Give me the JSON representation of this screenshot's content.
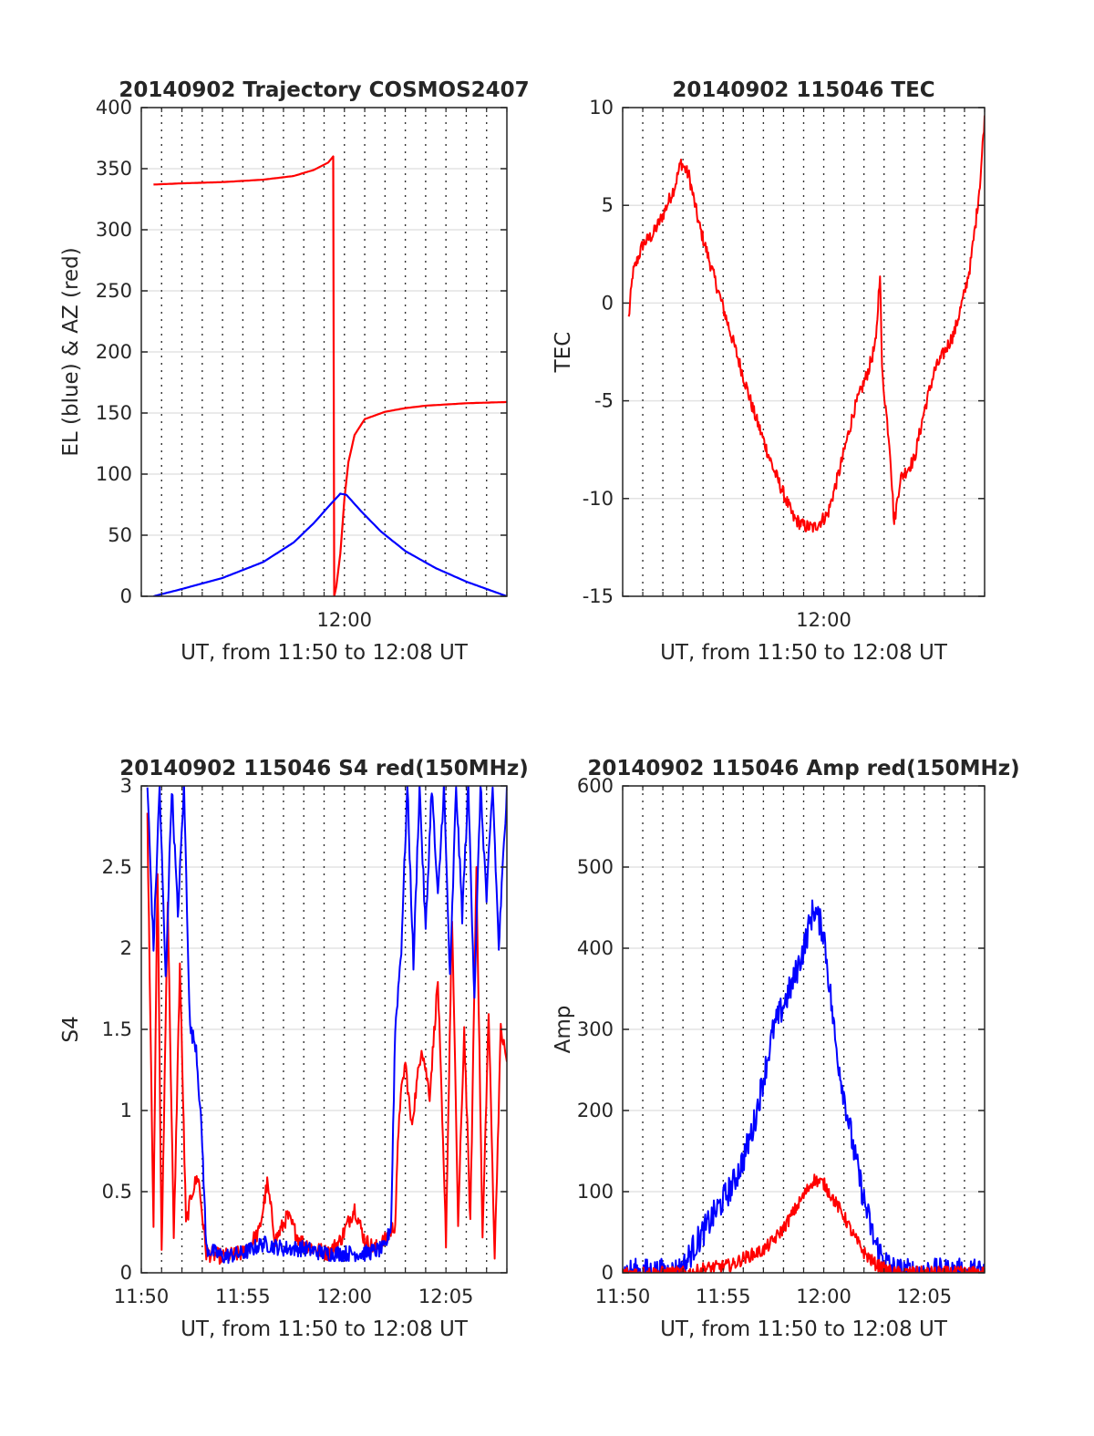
{
  "chart_data": [
    {
      "id": "trajectory",
      "type": "line",
      "title": "20140902 Trajectory COSMOS2407",
      "xlabel": "UT, from 11:50 to 12:08 UT",
      "ylabel": "EL (blue) & AZ (red)",
      "x_unit": "minutes after 11:50 UT",
      "xlim": [
        0,
        18
      ],
      "ylim": [
        0,
        400
      ],
      "yticks": [
        "0",
        "50",
        "100",
        "150",
        "200",
        "250",
        "300",
        "350",
        "400"
      ],
      "xticks": [
        {
          "at": 10,
          "label": "12:00"
        }
      ],
      "grid": true,
      "series": [
        {
          "color": "#ff0000",
          "noise": 0,
          "points": [
            [
              0.6,
              337
            ],
            [
              2,
              338
            ],
            [
              4,
              339
            ],
            [
              6,
              341
            ],
            [
              7.5,
              344
            ],
            [
              8.5,
              349
            ],
            [
              9.2,
              355
            ],
            [
              9.45,
              360
            ],
            [
              9.5,
              0
            ],
            [
              9.6,
              8
            ],
            [
              9.8,
              35
            ],
            [
              10,
              80
            ],
            [
              10.2,
              110
            ],
            [
              10.5,
              132
            ],
            [
              11,
              145
            ],
            [
              12,
              151
            ],
            [
              13,
              154
            ],
            [
              14,
              156
            ],
            [
              16,
              158
            ],
            [
              18,
              159
            ]
          ]
        },
        {
          "color": "#0000ff",
          "noise": 0,
          "points": [
            [
              0.6,
              0
            ],
            [
              2,
              6
            ],
            [
              4,
              15
            ],
            [
              6,
              28
            ],
            [
              7.5,
              44
            ],
            [
              8.5,
              60
            ],
            [
              9.3,
              75
            ],
            [
              9.8,
              84
            ],
            [
              10.1,
              83
            ],
            [
              10.8,
              70
            ],
            [
              11.8,
              53
            ],
            [
              13,
              37
            ],
            [
              14.5,
              23
            ],
            [
              16,
              12
            ],
            [
              18,
              0
            ]
          ]
        }
      ]
    },
    {
      "id": "tec",
      "type": "line",
      "title": "20140902 115046 TEC",
      "xlabel": "UT, from 11:50 to 12:08 UT",
      "ylabel": "TEC",
      "x_unit": "minutes after 11:50 UT",
      "xlim": [
        0,
        18
      ],
      "ylim": [
        -15,
        10
      ],
      "yticks": [
        "-15",
        "-10",
        "-5",
        "0",
        "5",
        "10"
      ],
      "xticks": [
        {
          "at": 10,
          "label": "12:00"
        }
      ],
      "grid": true,
      "series": [
        {
          "color": "#ff0000",
          "noise": 0.35,
          "points": [
            [
              0.3,
              -0.8
            ],
            [
              0.5,
              1.5
            ],
            [
              1,
              3
            ],
            [
              1.5,
              3.5
            ],
            [
              2,
              4.5
            ],
            [
              2.6,
              6
            ],
            [
              2.9,
              7.2
            ],
            [
              3.3,
              6.5
            ],
            [
              3.8,
              4
            ],
            [
              4.5,
              1.5
            ],
            [
              5.5,
              -2
            ],
            [
              6.5,
              -5.5
            ],
            [
              7.5,
              -8.5
            ],
            [
              8.5,
              -11
            ],
            [
              9,
              -11.4
            ],
            [
              9.5,
              -11.5
            ],
            [
              10.2,
              -10.8
            ],
            [
              10.8,
              -8.5
            ],
            [
              11.5,
              -5.5
            ],
            [
              12.2,
              -3.5
            ],
            [
              12.6,
              -2
            ],
            [
              12.8,
              1.7
            ],
            [
              12.9,
              -3.5
            ],
            [
              13.3,
              -7.5
            ],
            [
              13.5,
              -11.3
            ],
            [
              13.8,
              -9
            ],
            [
              14.5,
              -8
            ],
            [
              15,
              -5.5
            ],
            [
              15.5,
              -3.5
            ],
            [
              16,
              -2.5
            ],
            [
              16.5,
              -1.5
            ],
            [
              17,
              0.5
            ],
            [
              17.3,
              2
            ],
            [
              17.6,
              4.5
            ],
            [
              17.8,
              6.5
            ],
            [
              18,
              9.6
            ]
          ]
        }
      ]
    },
    {
      "id": "s4",
      "type": "line",
      "title": "20140902 115046 S4 red(150MHz)",
      "xlabel": "UT, from 11:50 to 12:08 UT",
      "ylabel": "S4",
      "x_unit": "minutes after 11:50 UT",
      "xlim": [
        0,
        18
      ],
      "ylim": [
        0,
        3
      ],
      "yticks": [
        "0",
        "0.5",
        "1",
        "1.5",
        "2",
        "2.5",
        "3"
      ],
      "xticks": [
        {
          "at": 0,
          "label": "11:50"
        },
        {
          "at": 5,
          "label": "11:55"
        },
        {
          "at": 10,
          "label": "12:00"
        },
        {
          "at": 15,
          "label": "12:05"
        }
      ],
      "grid": true,
      "series": [
        {
          "color": "#ff0000",
          "noise": 0.05,
          "points": [
            [
              0.3,
              2.8
            ],
            [
              0.6,
              0.3
            ],
            [
              0.8,
              2.5
            ],
            [
              1,
              0.1
            ],
            [
              1.3,
              2.3
            ],
            [
              1.6,
              0.2
            ],
            [
              1.9,
              1.9
            ],
            [
              2.2,
              0.3
            ],
            [
              2.5,
              0.5
            ],
            [
              2.8,
              0.6
            ],
            [
              3.2,
              0.12
            ],
            [
              4,
              0.1
            ],
            [
              5,
              0.12
            ],
            [
              5.8,
              0.25
            ],
            [
              6.2,
              0.55
            ],
            [
              6.6,
              0.2
            ],
            [
              7.2,
              0.35
            ],
            [
              7.8,
              0.2
            ],
            [
              8.5,
              0.15
            ],
            [
              9.2,
              0.12
            ],
            [
              9.8,
              0.2
            ],
            [
              10.5,
              0.4
            ],
            [
              11,
              0.2
            ],
            [
              11.5,
              0.15
            ],
            [
              12,
              0.2
            ],
            [
              12.5,
              0.3
            ],
            [
              12.7,
              1
            ],
            [
              13,
              1.3
            ],
            [
              13.3,
              0.9
            ],
            [
              13.8,
              1.4
            ],
            [
              14.2,
              1.1
            ],
            [
              14.6,
              1.8
            ],
            [
              15,
              0.2
            ],
            [
              15.3,
              2.2
            ],
            [
              15.6,
              0.3
            ],
            [
              15.9,
              1.5
            ],
            [
              16.2,
              0.3
            ],
            [
              16.5,
              2.5
            ],
            [
              16.8,
              0.2
            ],
            [
              17.1,
              1.6
            ],
            [
              17.4,
              0.1
            ],
            [
              17.7,
              1.5
            ],
            [
              18,
              1.3
            ]
          ]
        },
        {
          "color": "#0000ff",
          "noise": 0.05,
          "points": [
            [
              0.3,
              3
            ],
            [
              0.6,
              2
            ],
            [
              0.9,
              3
            ],
            [
              1.2,
              1.8
            ],
            [
              1.5,
              3
            ],
            [
              1.8,
              2.2
            ],
            [
              2.1,
              3
            ],
            [
              2.4,
              1.5
            ],
            [
              2.7,
              1.4
            ],
            [
              3,
              0.8
            ],
            [
              3.2,
              0.15
            ],
            [
              4,
              0.1
            ],
            [
              5,
              0.12
            ],
            [
              6,
              0.18
            ],
            [
              7,
              0.15
            ],
            [
              8,
              0.15
            ],
            [
              9,
              0.12
            ],
            [
              10,
              0.12
            ],
            [
              11,
              0.12
            ],
            [
              12,
              0.15
            ],
            [
              12.3,
              0.3
            ],
            [
              12.5,
              1.5
            ],
            [
              12.8,
              2
            ],
            [
              13.1,
              3
            ],
            [
              13.4,
              1.9
            ],
            [
              13.7,
              3
            ],
            [
              14,
              2.1
            ],
            [
              14.3,
              3
            ],
            [
              14.6,
              2.3
            ],
            [
              14.9,
              3
            ],
            [
              15.2,
              1.8
            ],
            [
              15.5,
              3
            ],
            [
              15.8,
              2.2
            ],
            [
              16.1,
              3
            ],
            [
              16.4,
              1.7
            ],
            [
              16.7,
              3
            ],
            [
              17,
              2.3
            ],
            [
              17.3,
              3
            ],
            [
              17.6,
              2
            ],
            [
              18,
              3
            ]
          ]
        }
      ]
    },
    {
      "id": "amp",
      "type": "line",
      "title": "20140902 115046 Amp red(150MHz)",
      "xlabel": "UT, from 11:50 to 12:08 UT",
      "ylabel": "Amp",
      "x_unit": "minutes after 11:50 UT",
      "xlim": [
        0,
        18
      ],
      "ylim": [
        0,
        600
      ],
      "yticks": [
        "0",
        "100",
        "200",
        "300",
        "400",
        "500",
        "600"
      ],
      "xticks": [
        {
          "at": 0,
          "label": "11:50"
        },
        {
          "at": 5,
          "label": "11:55"
        },
        {
          "at": 10,
          "label": "12:00"
        },
        {
          "at": 15,
          "label": "12:05"
        }
      ],
      "grid": true,
      "series": [
        {
          "color": "#0000ff",
          "noise": 18,
          "points": [
            [
              0,
              0
            ],
            [
              2.5,
              0
            ],
            [
              3,
              5
            ],
            [
              3.5,
              30
            ],
            [
              4,
              50
            ],
            [
              4.5,
              70
            ],
            [
              5,
              90
            ],
            [
              5.5,
              110
            ],
            [
              6,
              140
            ],
            [
              6.5,
              180
            ],
            [
              7,
              240
            ],
            [
              7.5,
              300
            ],
            [
              8,
              330
            ],
            [
              8.5,
              360
            ],
            [
              9,
              400
            ],
            [
              9.5,
              450
            ],
            [
              10,
              420
            ],
            [
              10.3,
              350
            ],
            [
              10.6,
              280
            ],
            [
              11,
              220
            ],
            [
              11.5,
              150
            ],
            [
              12,
              90
            ],
            [
              12.5,
              40
            ],
            [
              13,
              15
            ],
            [
              13.5,
              3
            ],
            [
              14,
              0
            ],
            [
              18,
              0
            ]
          ]
        },
        {
          "color": "#ff0000",
          "noise": 8,
          "points": [
            [
              0,
              0
            ],
            [
              3.5,
              0
            ],
            [
              4,
              5
            ],
            [
              5,
              8
            ],
            [
              5.5,
              10
            ],
            [
              6,
              18
            ],
            [
              7,
              28
            ],
            [
              7.5,
              40
            ],
            [
              8,
              55
            ],
            [
              8.5,
              75
            ],
            [
              9,
              95
            ],
            [
              9.5,
              115
            ],
            [
              10,
              110
            ],
            [
              10.5,
              90
            ],
            [
              11,
              70
            ],
            [
              11.5,
              45
            ],
            [
              12,
              25
            ],
            [
              12.5,
              12
            ],
            [
              13,
              5
            ],
            [
              13.5,
              0
            ],
            [
              18,
              0
            ]
          ]
        }
      ]
    }
  ]
}
